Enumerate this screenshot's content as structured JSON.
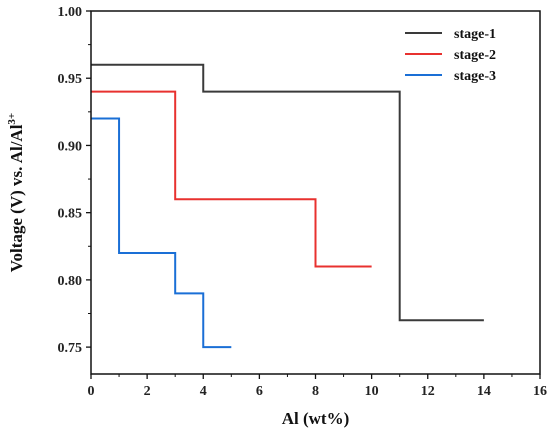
{
  "chart_data": {
    "type": "line",
    "step": true,
    "title": "",
    "xlabel": "Al (wt%)",
    "ylabel": "Voltage (V) vs. Al/Al",
    "ylabel_superscript": "3+",
    "xlim": [
      0,
      16
    ],
    "ylim": [
      0.73,
      1.0
    ],
    "xticks": [
      0,
      2,
      4,
      6,
      8,
      10,
      12,
      14,
      16
    ],
    "yticks": [
      0.75,
      0.8,
      0.85,
      0.9,
      0.95,
      1.0
    ],
    "xtick_labels": [
      "0",
      "2",
      "4",
      "6",
      "8",
      "10",
      "12",
      "14",
      "16"
    ],
    "ytick_labels": [
      "0.75",
      "0.80",
      "0.85",
      "0.90",
      "0.95",
      "1.00"
    ],
    "grid": false,
    "legend_position": "top-right",
    "series": [
      {
        "name": "stage-1",
        "color": "#3a3a3a",
        "x": [
          0,
          4,
          4,
          11,
          11,
          14
        ],
        "y": [
          0.96,
          0.96,
          0.94,
          0.94,
          0.77,
          0.77
        ]
      },
      {
        "name": "stage-2",
        "color": "#e8312f",
        "x": [
          0,
          3,
          3,
          8,
          8,
          10
        ],
        "y": [
          0.94,
          0.94,
          0.86,
          0.86,
          0.81,
          0.81
        ]
      },
      {
        "name": "stage-3",
        "color": "#1a6fd6",
        "x": [
          0,
          1,
          1,
          3,
          3,
          4,
          4,
          5
        ],
        "y": [
          0.92,
          0.92,
          0.82,
          0.82,
          0.79,
          0.79,
          0.75,
          0.75
        ]
      }
    ]
  }
}
